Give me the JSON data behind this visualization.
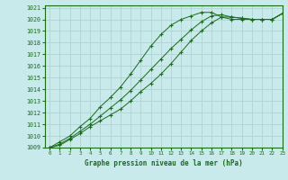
{
  "title": "Graphe pression niveau de la mer (hPa)",
  "bg_color": "#c8eaea",
  "grid_color": "#b0d4d4",
  "line_color": "#1a6b1a",
  "xlim": [
    -0.5,
    23
  ],
  "ylim": [
    1009,
    1021.2
  ],
  "yticks": [
    1009,
    1010,
    1011,
    1012,
    1013,
    1014,
    1015,
    1016,
    1017,
    1018,
    1019,
    1020,
    1021
  ],
  "xticks": [
    0,
    1,
    2,
    3,
    4,
    5,
    6,
    7,
    8,
    9,
    10,
    11,
    12,
    13,
    14,
    15,
    16,
    17,
    18,
    19,
    20,
    21,
    22,
    23
  ],
  "series": [
    [
      1009.0,
      1009.5,
      1010.0,
      1010.8,
      1011.5,
      1012.5,
      1013.3,
      1014.2,
      1015.3,
      1016.5,
      1017.7,
      1018.7,
      1019.5,
      1020.0,
      1020.3,
      1020.6,
      1020.6,
      1020.2,
      1020.0,
      1020.0,
      1020.0,
      1020.0,
      1020.0,
      1020.5
    ],
    [
      1009.0,
      1009.2,
      1009.7,
      1010.2,
      1010.8,
      1011.3,
      1011.8,
      1012.3,
      1013.0,
      1013.8,
      1014.5,
      1015.3,
      1016.2,
      1017.2,
      1018.2,
      1019.0,
      1019.7,
      1020.2,
      1020.2,
      1020.1,
      1020.0,
      1020.0,
      1020.0,
      1020.5
    ],
    [
      1009.0,
      1009.3,
      1009.8,
      1010.4,
      1011.0,
      1011.7,
      1012.4,
      1013.1,
      1013.9,
      1014.8,
      1015.7,
      1016.6,
      1017.5,
      1018.3,
      1019.1,
      1019.8,
      1020.3,
      1020.4,
      1020.2,
      1020.1,
      1020.0,
      1020.0,
      1020.0,
      1020.5
    ]
  ]
}
